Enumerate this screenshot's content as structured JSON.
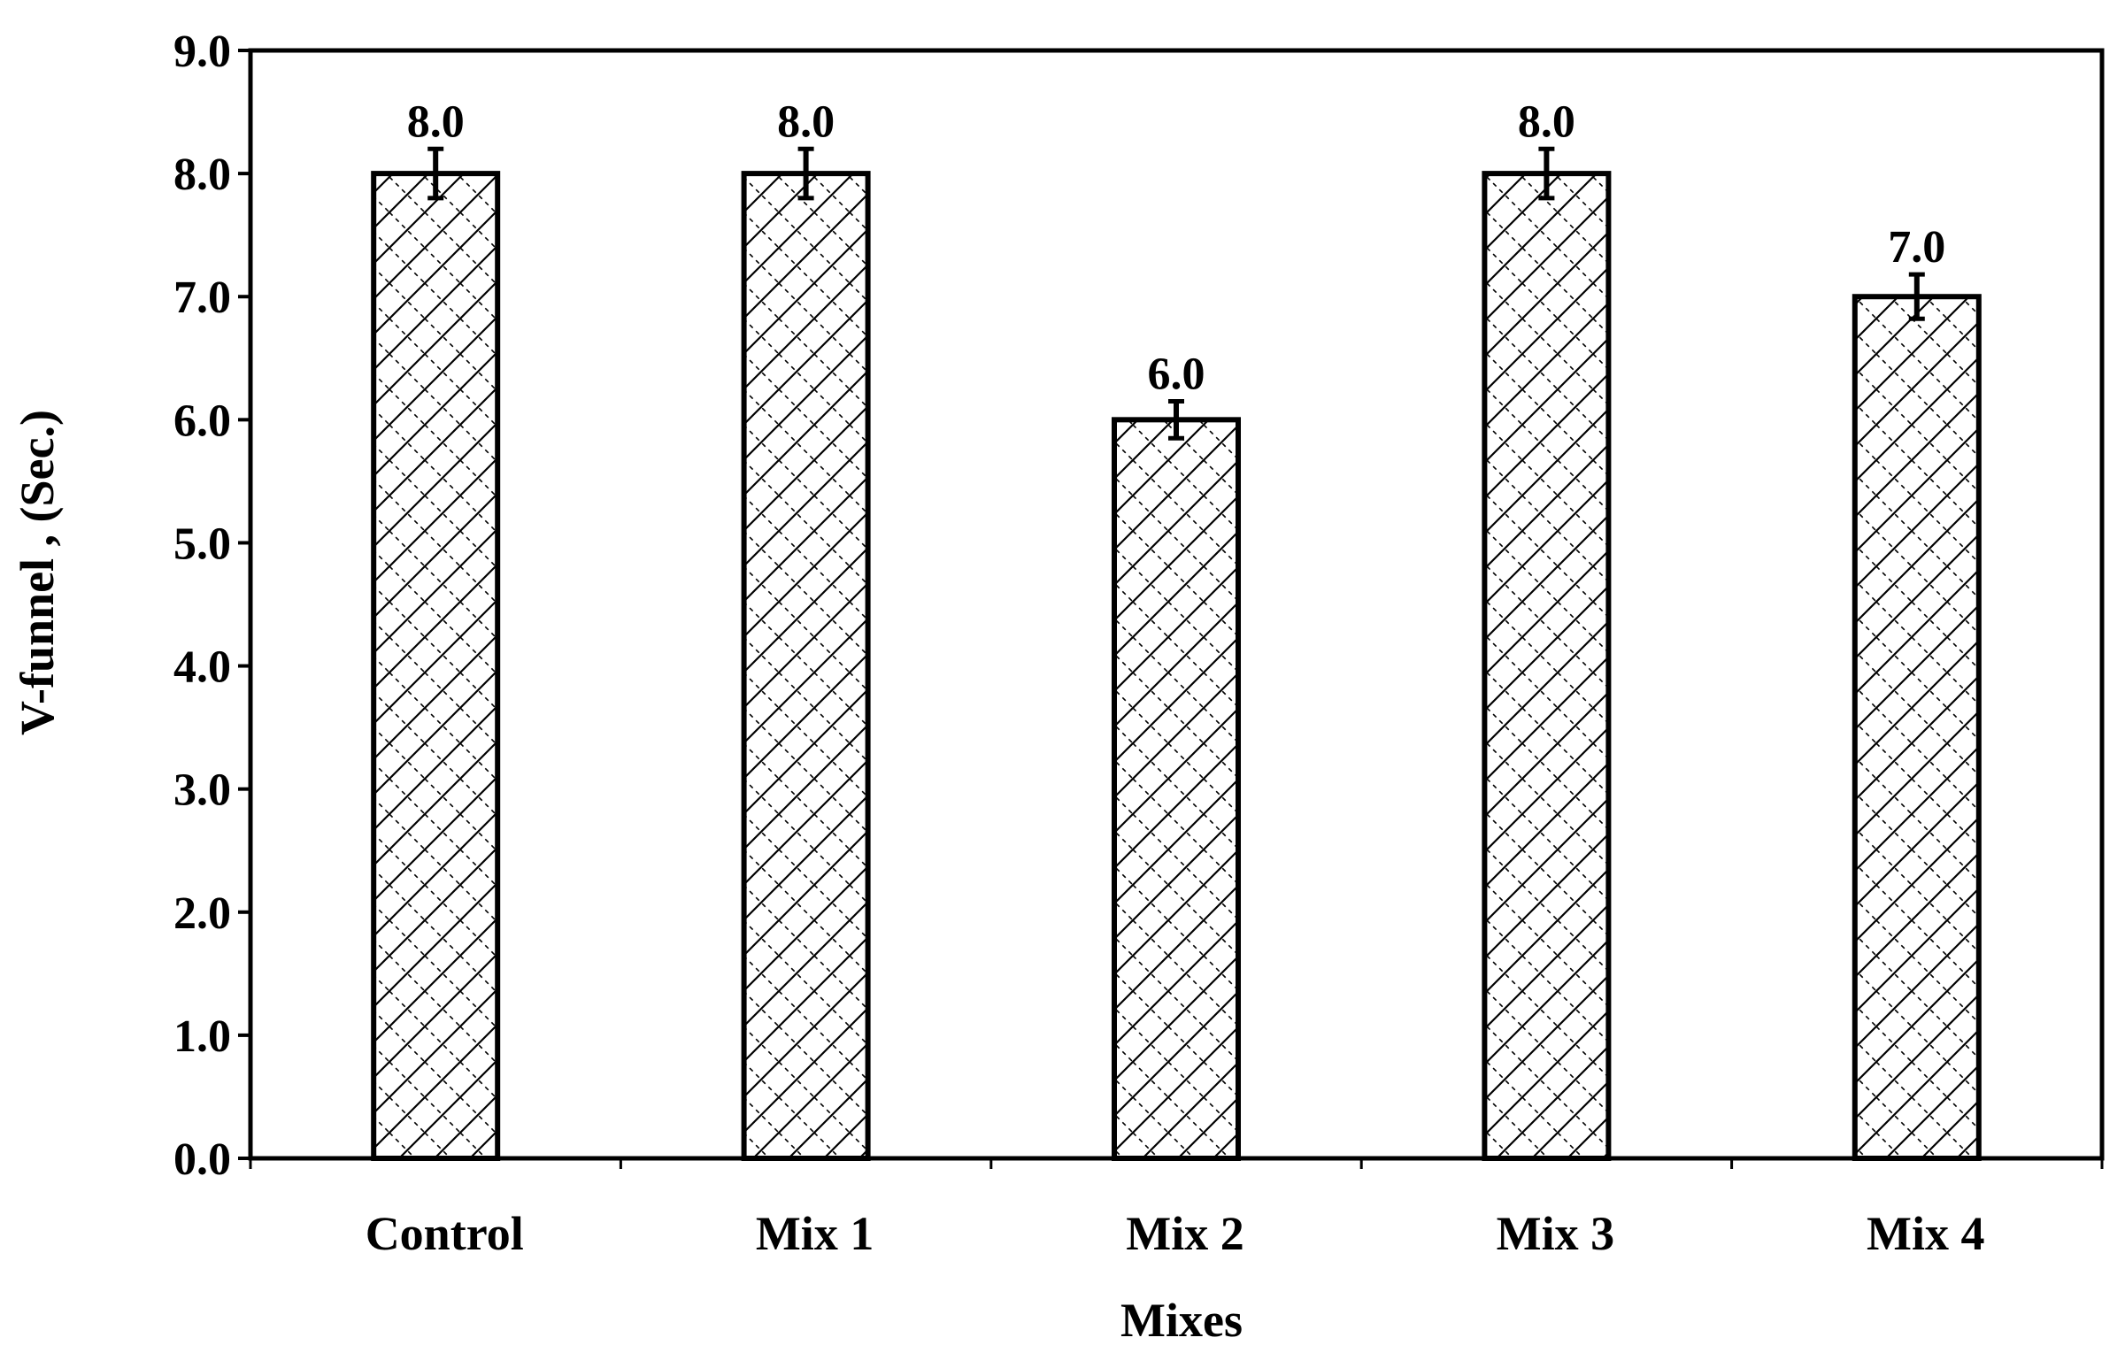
{
  "chart_data": {
    "type": "bar",
    "title": "",
    "xlabel": "Mixes",
    "ylabel": "V-funnel , (Sec.)",
    "categories": [
      "Control",
      "Mix 1",
      "Mix 2",
      "Mix 3",
      "Mix 4"
    ],
    "values": [
      8.0,
      8.0,
      6.0,
      8.0,
      7.0
    ],
    "data_labels": [
      "8.0",
      "8.0",
      "6.0",
      "8.0",
      "7.0"
    ],
    "error": [
      0.2,
      0.2,
      0.15,
      0.2,
      0.18
    ],
    "ylim": [
      0,
      9
    ],
    "yticks": [
      "0.0",
      "1.0",
      "2.0",
      "3.0",
      "4.0",
      "5.0",
      "6.0",
      "7.0",
      "8.0",
      "9.0"
    ],
    "grid": false,
    "legend": "none",
    "bar_fill": "crosshatch",
    "colors": {
      "stroke": "#000000",
      "background": "#ffffff"
    }
  }
}
